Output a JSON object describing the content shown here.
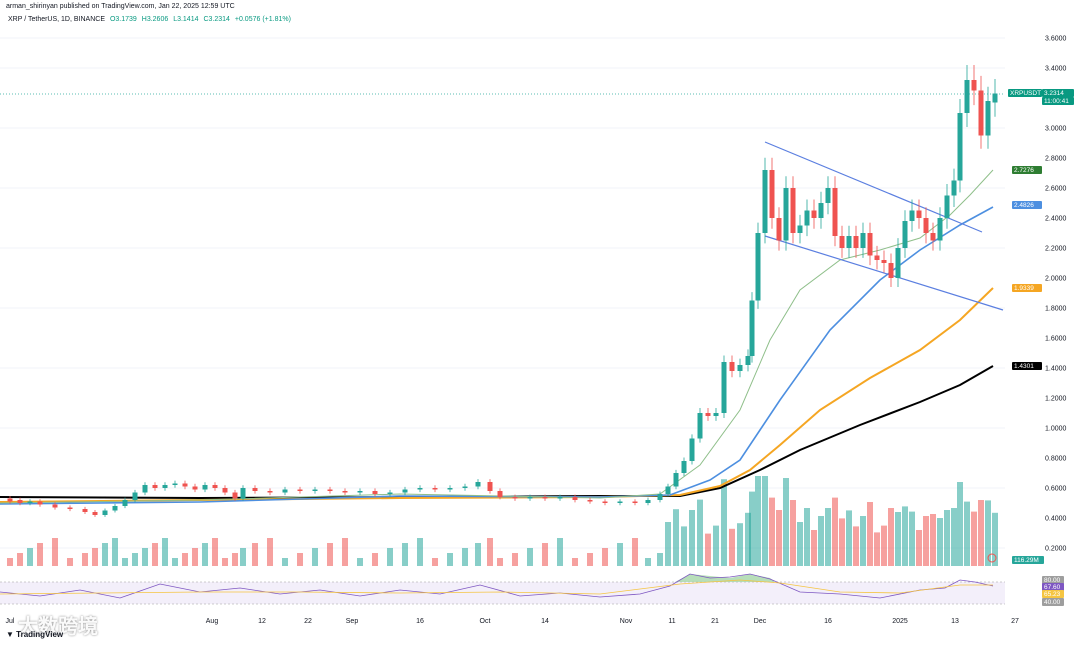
{
  "header": {
    "text": "arman_shirinyan published on TradingView.com, Jan 22, 2025 12:59 UTC"
  },
  "legend": {
    "symbol": "XRP / TetherUS, 1D, BINANCE",
    "open": "O3.1739",
    "high": "H3.2606",
    "low": "L3.1414",
    "close": "C3.2314",
    "change": "+0.0576 (+1.81%)"
  },
  "watermark": "大数跨境",
  "logo": "TradingView",
  "colors": {
    "up": "#26a69a",
    "down": "#ef5350",
    "ema20": "#8fbf8a",
    "ema50": "#4d8fe0",
    "ema100": "#f5a623",
    "ema200": "#000000",
    "trend": "#5b7fe0",
    "rsi": "#7e57c2"
  },
  "badges": [
    {
      "text": "XRPUSDT",
      "color": "#089981"
    },
    {
      "text": "3.2314",
      "color": "#089981"
    },
    {
      "text": "11:00:41",
      "color": "#089981"
    },
    {
      "text": "2.7276",
      "color": "#2e7d32"
    },
    {
      "text": "2.4826",
      "color": "#4d8fe0"
    },
    {
      "text": "1.9339",
      "color": "#f5a623"
    },
    {
      "text": "1.4301",
      "color": "#000000"
    },
    {
      "text": "116.29M",
      "color": "#26a69a"
    },
    {
      "text": "80.00",
      "color": "#9e9e9e"
    },
    {
      "text": "67.60",
      "color": "#7e57c2"
    },
    {
      "text": "65.23",
      "color": "#f5c542"
    },
    {
      "text": "40.00",
      "color": "#9e9e9e"
    }
  ],
  "chart_data": {
    "type": "candlestick",
    "price_ylim": [
      0.1,
      3.7
    ],
    "y_ticks": [
      "3.6000",
      "3.4000",
      "3.2000",
      "3.0000",
      "2.8000",
      "2.6000",
      "2.4000",
      "2.2000",
      "2.0000",
      "1.8000",
      "1.6000",
      "1.4000",
      "1.2000",
      "1.0000",
      "0.8000",
      "0.6000",
      "0.4000",
      "0.2000"
    ],
    "x_ticks": [
      "Jul",
      "Aug",
      "12",
      "22",
      "Sep",
      "16",
      "Oct",
      "14",
      "Nov",
      "11",
      "21",
      "Dec",
      "16",
      "2025",
      "13",
      "27"
    ],
    "last_price": 3.2314,
    "candles": [
      {
        "x": 10,
        "o": 0.53,
        "c": 0.51
      },
      {
        "x": 20,
        "o": 0.52,
        "c": 0.5
      },
      {
        "x": 30,
        "o": 0.5,
        "c": 0.51
      },
      {
        "x": 40,
        "o": 0.51,
        "c": 0.49
      },
      {
        "x": 55,
        "o": 0.49,
        "c": 0.47
      },
      {
        "x": 70,
        "o": 0.47,
        "c": 0.46
      },
      {
        "x": 85,
        "o": 0.46,
        "c": 0.44
      },
      {
        "x": 95,
        "o": 0.44,
        "c": 0.42
      },
      {
        "x": 105,
        "o": 0.42,
        "c": 0.45
      },
      {
        "x": 115,
        "o": 0.45,
        "c": 0.48
      },
      {
        "x": 125,
        "o": 0.48,
        "c": 0.52
      },
      {
        "x": 135,
        "o": 0.52,
        "c": 0.57
      },
      {
        "x": 145,
        "o": 0.57,
        "c": 0.62
      },
      {
        "x": 155,
        "o": 0.62,
        "c": 0.6
      },
      {
        "x": 165,
        "o": 0.6,
        "c": 0.62
      },
      {
        "x": 175,
        "o": 0.62,
        "c": 0.63
      },
      {
        "x": 185,
        "o": 0.63,
        "c": 0.61
      },
      {
        "x": 195,
        "o": 0.61,
        "c": 0.59
      },
      {
        "x": 205,
        "o": 0.59,
        "c": 0.62
      },
      {
        "x": 215,
        "o": 0.62,
        "c": 0.6
      },
      {
        "x": 225,
        "o": 0.6,
        "c": 0.57
      },
      {
        "x": 235,
        "o": 0.57,
        "c": 0.53
      },
      {
        "x": 243,
        "o": 0.53,
        "c": 0.6
      },
      {
        "x": 255,
        "o": 0.6,
        "c": 0.58
      },
      {
        "x": 270,
        "o": 0.58,
        "c": 0.57
      },
      {
        "x": 285,
        "o": 0.57,
        "c": 0.59
      },
      {
        "x": 300,
        "o": 0.59,
        "c": 0.58
      },
      {
        "x": 315,
        "o": 0.58,
        "c": 0.59
      },
      {
        "x": 330,
        "o": 0.59,
        "c": 0.58
      },
      {
        "x": 345,
        "o": 0.58,
        "c": 0.57
      },
      {
        "x": 360,
        "o": 0.57,
        "c": 0.58
      },
      {
        "x": 375,
        "o": 0.58,
        "c": 0.56
      },
      {
        "x": 390,
        "o": 0.56,
        "c": 0.57
      },
      {
        "x": 405,
        "o": 0.57,
        "c": 0.59
      },
      {
        "x": 420,
        "o": 0.59,
        "c": 0.6
      },
      {
        "x": 435,
        "o": 0.6,
        "c": 0.59
      },
      {
        "x": 450,
        "o": 0.59,
        "c": 0.6
      },
      {
        "x": 465,
        "o": 0.6,
        "c": 0.61
      },
      {
        "x": 478,
        "o": 0.61,
        "c": 0.64
      },
      {
        "x": 490,
        "o": 0.64,
        "c": 0.58
      },
      {
        "x": 500,
        "o": 0.58,
        "c": 0.54
      },
      {
        "x": 515,
        "o": 0.54,
        "c": 0.53
      },
      {
        "x": 530,
        "o": 0.53,
        "c": 0.54
      },
      {
        "x": 545,
        "o": 0.54,
        "c": 0.53
      },
      {
        "x": 560,
        "o": 0.53,
        "c": 0.54
      },
      {
        "x": 575,
        "o": 0.54,
        "c": 0.52
      },
      {
        "x": 590,
        "o": 0.52,
        "c": 0.51
      },
      {
        "x": 605,
        "o": 0.51,
        "c": 0.5
      },
      {
        "x": 620,
        "o": 0.5,
        "c": 0.51
      },
      {
        "x": 635,
        "o": 0.51,
        "c": 0.5
      },
      {
        "x": 648,
        "o": 0.5,
        "c": 0.52
      },
      {
        "x": 660,
        "o": 0.52,
        "c": 0.56
      },
      {
        "x": 668,
        "o": 0.56,
        "c": 0.61
      },
      {
        "x": 676,
        "o": 0.61,
        "c": 0.7
      },
      {
        "x": 684,
        "o": 0.7,
        "c": 0.78
      },
      {
        "x": 692,
        "o": 0.78,
        "c": 0.93
      },
      {
        "x": 700,
        "o": 0.93,
        "c": 1.1
      },
      {
        "x": 708,
        "o": 1.1,
        "c": 1.08
      },
      {
        "x": 716,
        "o": 1.08,
        "c": 1.1
      },
      {
        "x": 724,
        "o": 1.1,
        "c": 1.44
      },
      {
        "x": 732,
        "o": 1.44,
        "c": 1.38
      },
      {
        "x": 740,
        "o": 1.38,
        "c": 1.42
      },
      {
        "x": 748,
        "o": 1.42,
        "c": 1.48
      },
      {
        "x": 752,
        "o": 1.48,
        "c": 1.85
      },
      {
        "x": 758,
        "o": 1.85,
        "c": 2.3
      },
      {
        "x": 765,
        "o": 2.3,
        "c": 2.72
      },
      {
        "x": 772,
        "o": 2.72,
        "c": 2.4
      },
      {
        "x": 779,
        "o": 2.4,
        "c": 2.25
      },
      {
        "x": 786,
        "o": 2.25,
        "c": 2.6
      },
      {
        "x": 793,
        "o": 2.6,
        "c": 2.3
      },
      {
        "x": 800,
        "o": 2.3,
        "c": 2.35
      },
      {
        "x": 807,
        "o": 2.35,
        "c": 2.45
      },
      {
        "x": 814,
        "o": 2.45,
        "c": 2.4
      },
      {
        "x": 821,
        "o": 2.4,
        "c": 2.5
      },
      {
        "x": 828,
        "o": 2.5,
        "c": 2.6
      },
      {
        "x": 835,
        "o": 2.6,
        "c": 2.28
      },
      {
        "x": 842,
        "o": 2.28,
        "c": 2.2
      },
      {
        "x": 849,
        "o": 2.2,
        "c": 2.28
      },
      {
        "x": 856,
        "o": 2.28,
        "c": 2.2
      },
      {
        "x": 863,
        "o": 2.2,
        "c": 2.3
      },
      {
        "x": 870,
        "o": 2.3,
        "c": 2.15
      },
      {
        "x": 877,
        "o": 2.15,
        "c": 2.12
      },
      {
        "x": 884,
        "o": 2.12,
        "c": 2.1
      },
      {
        "x": 891,
        "o": 2.1,
        "c": 2.0
      },
      {
        "x": 898,
        "o": 2.0,
        "c": 2.2
      },
      {
        "x": 905,
        "o": 2.2,
        "c": 2.38
      },
      {
        "x": 912,
        "o": 2.38,
        "c": 2.45
      },
      {
        "x": 919,
        "o": 2.45,
        "c": 2.4
      },
      {
        "x": 926,
        "o": 2.4,
        "c": 2.3
      },
      {
        "x": 933,
        "o": 2.3,
        "c": 2.25
      },
      {
        "x": 940,
        "o": 2.25,
        "c": 2.4
      },
      {
        "x": 947,
        "o": 2.4,
        "c": 2.55
      },
      {
        "x": 954,
        "o": 2.55,
        "c": 2.65
      },
      {
        "x": 960,
        "o": 2.65,
        "c": 3.1
      },
      {
        "x": 967,
        "o": 3.1,
        "c": 3.32
      },
      {
        "x": 974,
        "o": 3.32,
        "c": 3.25
      },
      {
        "x": 981,
        "o": 3.25,
        "c": 2.95
      },
      {
        "x": 988,
        "o": 2.95,
        "c": 3.18
      },
      {
        "x": 995,
        "o": 3.17,
        "c": 3.23
      }
    ]
  }
}
